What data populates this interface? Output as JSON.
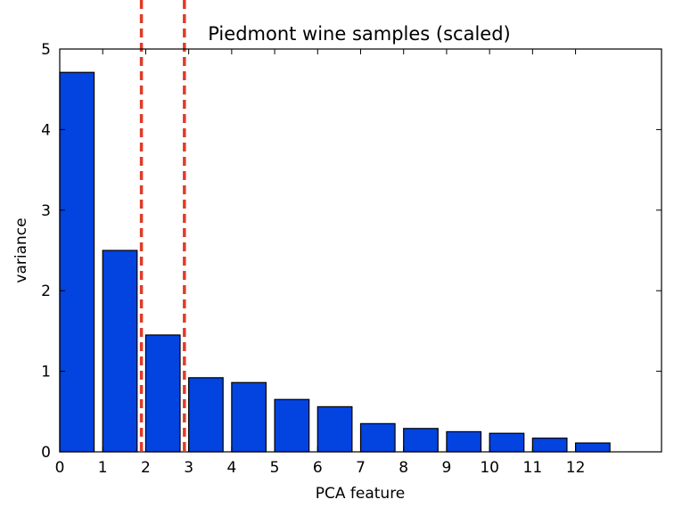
{
  "chart_data": {
    "type": "bar",
    "title": "Piedmont wine samples (scaled)",
    "xlabel": "PCA feature",
    "ylabel": "variance",
    "categories": [
      "0",
      "1",
      "2",
      "3",
      "4",
      "5",
      "6",
      "7",
      "8",
      "9",
      "10",
      "11",
      "12"
    ],
    "values": [
      4.71,
      2.5,
      1.45,
      0.92,
      0.86,
      0.65,
      0.56,
      0.35,
      0.29,
      0.25,
      0.23,
      0.17,
      0.11
    ],
    "xlim": [
      0,
      14
    ],
    "ylim": [
      0,
      5
    ],
    "yticks": [
      "0",
      "1",
      "2",
      "3",
      "4",
      "5"
    ],
    "bar_color": "#0343df",
    "reference_lines": {
      "x": [
        1.9,
        2.9
      ],
      "style": "dashed",
      "color": "#e03c28"
    },
    "grid": false,
    "legend": "none"
  }
}
